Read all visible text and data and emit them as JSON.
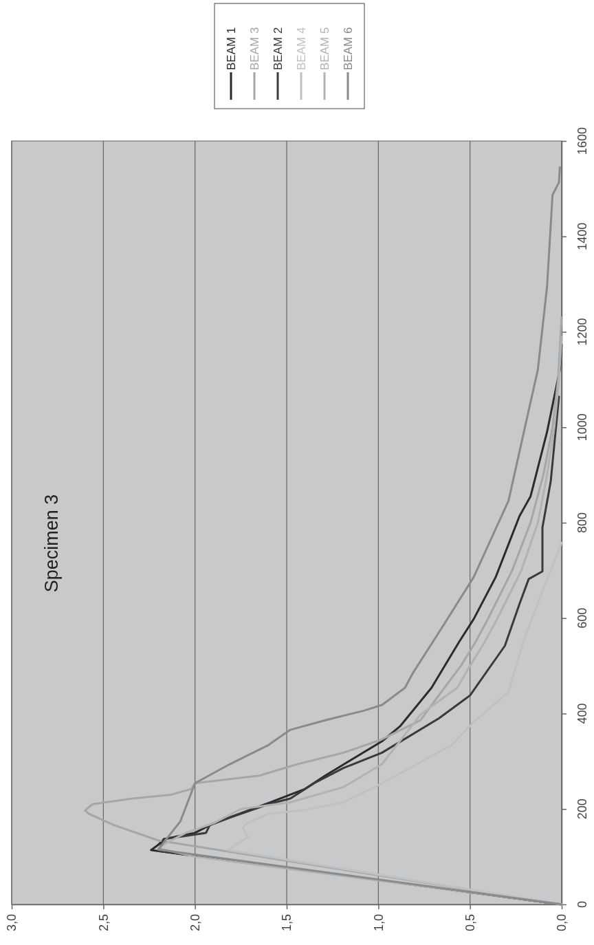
{
  "chart_data": {
    "type": "line",
    "title": "Specimen 3",
    "xlim": [
      3,
      0
    ],
    "xticks": [
      {
        "value": 3,
        "label": "3,0"
      },
      {
        "value": 2.5,
        "label": "2,5"
      },
      {
        "value": 2,
        "label": "2,0"
      },
      {
        "value": 1.5,
        "label": "1,5"
      },
      {
        "value": 1,
        "label": "1,0"
      },
      {
        "value": 0.5,
        "label": "0,5"
      },
      {
        "value": 0,
        "label": "0,0"
      }
    ],
    "ylim": [
      0,
      1600
    ],
    "yticks": [
      0,
      200,
      400,
      600,
      800,
      1000,
      1200,
      1400,
      1600
    ],
    "grid": "x",
    "legend": "top",
    "marker": "none",
    "line_style": "solid",
    "series": [
      {
        "name": "BEAM 1",
        "color": "#2b2b2b",
        "values": [
          0,
          114,
          125,
          137,
          150,
          170,
          214,
          242,
          270,
          342,
          374,
          454,
          550,
          598,
          686,
          814,
          855,
          990,
          1121,
          1173
        ],
        "x": [
          0,
          2.24,
          2.2,
          2.17,
          2.0,
          1.9,
          1.59,
          1.4,
          1.29,
          0.98,
          0.88,
          0.71,
          0.56,
          0.48,
          0.36,
          0.23,
          0.17,
          0.08,
          0.01,
          0
        ]
      },
      {
        "name": "BEAM 3",
        "color": "#a6a6a6",
        "values": [
          0,
          134,
          166,
          190,
          197,
          210,
          222,
          230,
          242,
          254,
          270,
          294,
          318,
          346,
          386,
          454,
          500,
          550,
          600,
          700,
          800,
          900,
          1000,
          1100,
          1230
        ],
        "x": [
          0,
          2.2,
          2.44,
          2.58,
          2.6,
          2.56,
          2.34,
          2.13,
          2.02,
          2.0,
          1.65,
          1.44,
          1.19,
          0.98,
          0.77,
          0.64,
          0.55,
          0.47,
          0.4,
          0.27,
          0.17,
          0.1,
          0.05,
          0.02,
          0
        ]
      },
      {
        "name": "BEAM 2",
        "color": "#3a3a3a",
        "values": [
          0,
          112,
          137,
          150,
          166,
          182,
          210,
          222,
          254,
          286,
          318,
          390,
          438,
          542,
          630,
          682,
          698,
          790,
          886,
          1064
        ],
        "x": [
          0,
          2.2,
          2.17,
          1.94,
          1.92,
          1.81,
          1.6,
          1.48,
          1.35,
          1.19,
          0.98,
          0.67,
          0.5,
          0.31,
          0.23,
          0.18,
          0.105,
          0.105,
          0.06,
          0.015
        ]
      },
      {
        "name": "BEAM 4",
        "color": "#c0c0c0",
        "values": [
          0,
          114,
          125,
          141,
          160,
          170,
          190,
          198,
          214,
          254,
          334,
          382,
          445,
          550,
          662,
          758
        ],
        "x": [
          0,
          1.82,
          1.78,
          1.71,
          1.74,
          1.72,
          1.6,
          1.4,
          1.19,
          0.98,
          0.6,
          0.48,
          0.29,
          0.21,
          0.1,
          0
        ]
      },
      {
        "name": "BEAM 5",
        "color": "#b2b2b2",
        "values": [
          0,
          100,
          118,
          130,
          150,
          170,
          200,
          214,
          246,
          294,
          398,
          454,
          500,
          550,
          600,
          700,
          800,
          900,
          1000,
          1100,
          1190
        ],
        "x": [
          0,
          2.0,
          2.2,
          2.15,
          2.05,
          1.9,
          1.75,
          1.48,
          1.19,
          0.98,
          0.77,
          0.57,
          0.5,
          0.42,
          0.35,
          0.22,
          0.13,
          0.08,
          0.04,
          0.015,
          0
        ]
      },
      {
        "name": "BEAM 6",
        "color": "#8a8a8a",
        "values": [
          0,
          115,
          140,
          174,
          254,
          294,
          334,
          366,
          386,
          406,
          418,
          454,
          486,
          582,
          686,
          846,
          1001,
          1121,
          1294,
          1487,
          1513,
          1545
        ],
        "x": [
          0,
          2.2,
          2.15,
          2.08,
          2.0,
          1.81,
          1.6,
          1.48,
          1.29,
          1.08,
          0.98,
          0.855,
          0.81,
          0.65,
          0.48,
          0.29,
          0.2,
          0.13,
          0.08,
          0.05,
          0.015,
          0.01
        ]
      }
    ]
  }
}
